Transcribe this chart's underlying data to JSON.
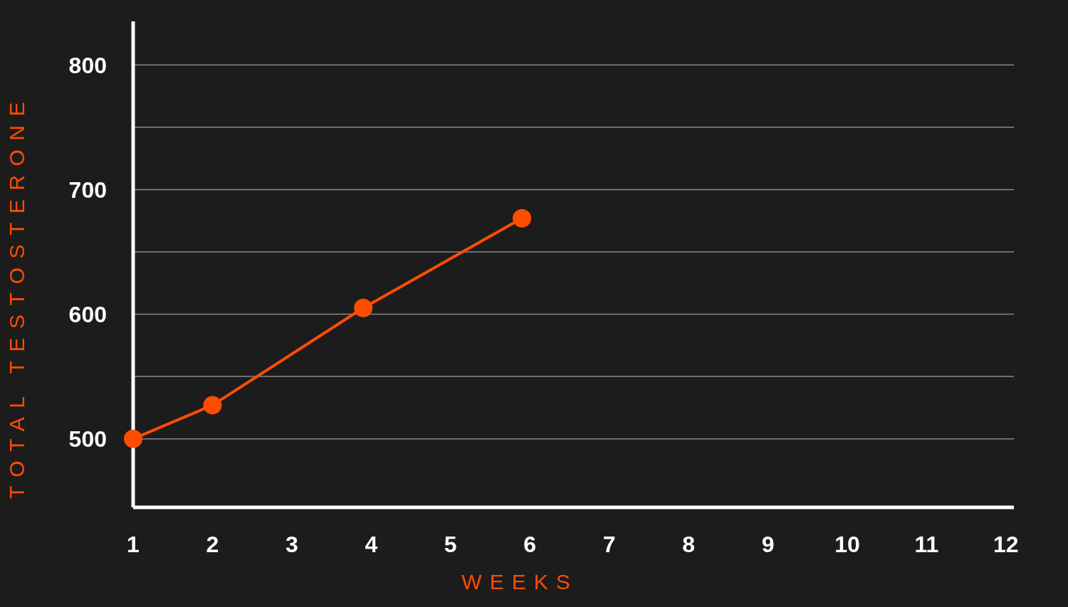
{
  "chart_data": {
    "type": "line",
    "xlabel": "WEEKS",
    "ylabel": "TOTAL TESTOSTERONE",
    "x": [
      1,
      2,
      3.9,
      5.9
    ],
    "series": [
      {
        "color": "#ff4d00",
        "values": [
          500,
          527,
          605,
          677
        ]
      }
    ],
    "xlim": [
      1,
      12.1
    ],
    "xticks": [
      1,
      2,
      3,
      4,
      5,
      6,
      7,
      8,
      9,
      10,
      11,
      12
    ],
    "ylim": [
      445,
      835
    ],
    "yticks": [
      500,
      {
        "value": 550,
        "label": null
      },
      600,
      {
        "value": 650,
        "label": null
      },
      700,
      {
        "value": 750,
        "label": null
      },
      800
    ],
    "grid": "y",
    "marker": "circle",
    "line_style": "solid"
  }
}
